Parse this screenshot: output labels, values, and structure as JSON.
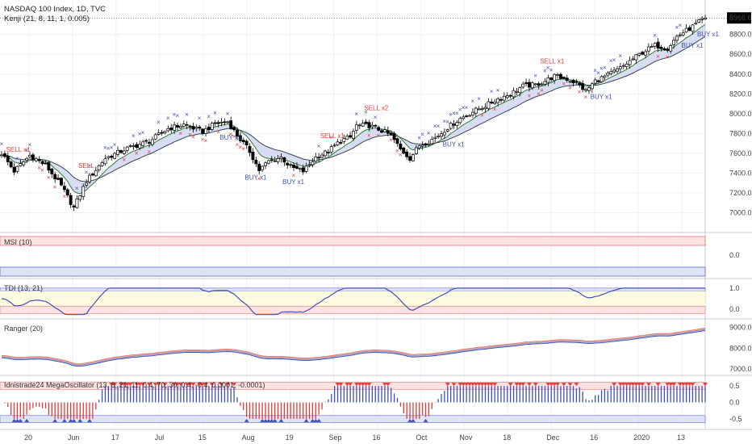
{
  "header": {
    "title": "NASDAQ 100 Index, 1D, TVC",
    "subtitle": "Kenji (21, 8, 11, 1, 0.005)",
    "last_price": "8966.6"
  },
  "colors": {
    "up": "#ffffff",
    "down": "#000000",
    "buy": "#3f51b5",
    "sell": "#e53935",
    "band_fill": "#c9cff0",
    "price_tag": "#000000"
  },
  "x_axis_labels": [
    "20",
    "Jun",
    "17",
    "Jul",
    "15",
    "Aug",
    "19",
    "Sep",
    "16",
    "Oct",
    "Nov",
    "18",
    "Dec",
    "16",
    "2020",
    "13"
  ],
  "panes": [
    {
      "id": "price",
      "label": "",
      "ticks": [
        "8800.0",
        "8600.0",
        "8400.0",
        "8200.0",
        "8000.0",
        "7800.0",
        "7600.0",
        "7400.0",
        "7200.0",
        "7000.0"
      ]
    },
    {
      "id": "msi",
      "label": "MSI (10)",
      "ticks": [
        "0.0"
      ]
    },
    {
      "id": "tdi",
      "label": "TDI (13, 21)",
      "ticks": [
        "1.0",
        "0.0"
      ]
    },
    {
      "id": "ranger",
      "label": "Ranger (20)",
      "ticks": [
        "9000.0",
        "8000.0",
        "7000.0"
      ]
    },
    {
      "id": "mega",
      "label": "Idnistrade24 MegaOscillator (13, 8, 21, 11, 0.4, 70, 30, 0.4, -0.4, 0.0001, -0.0001)",
      "ticks": [
        "0.5",
        "0.0",
        "-0.5"
      ]
    }
  ],
  "signals": [
    {
      "text": "SELL x1",
      "type": "sell"
    },
    {
      "text": "SELL",
      "type": "sell"
    },
    {
      "text": "BUY x1",
      "type": "buy"
    },
    {
      "text": "BUY x1",
      "type": "buy"
    },
    {
      "text": "BUY x1",
      "type": "buy"
    },
    {
      "text": "SELL x1",
      "type": "sell"
    },
    {
      "text": "SELL x2",
      "type": "sell"
    },
    {
      "text": "BUY x1",
      "type": "buy"
    },
    {
      "text": "SELL x1",
      "type": "sell"
    },
    {
      "text": "BUY x1",
      "type": "buy"
    },
    {
      "text": "BUY x1",
      "type": "buy"
    },
    {
      "text": "BUY x1",
      "type": "buy"
    }
  ],
  "chart_data": {
    "type": "candlestick",
    "symbol": "NASDAQ 100 Index",
    "interval": "1D",
    "ylim": [
      6850,
      9050
    ],
    "close_anchors": [
      [
        0,
        7600
      ],
      [
        4,
        7420
      ],
      [
        9,
        7580
      ],
      [
        14,
        7480
      ],
      [
        19,
        7270
      ],
      [
        23,
        7050
      ],
      [
        27,
        7320
      ],
      [
        33,
        7550
      ],
      [
        40,
        7650
      ],
      [
        47,
        7720
      ],
      [
        53,
        7850
      ],
      [
        58,
        7890
      ],
      [
        64,
        7820
      ],
      [
        68,
        7900
      ],
      [
        72,
        7920
      ],
      [
        75,
        7780
      ],
      [
        79,
        7620
      ],
      [
        82,
        7430
      ],
      [
        85,
        7520
      ],
      [
        89,
        7560
      ],
      [
        92,
        7460
      ],
      [
        96,
        7420
      ],
      [
        100,
        7560
      ],
      [
        104,
        7620
      ],
      [
        108,
        7730
      ],
      [
        111,
        7760
      ],
      [
        113,
        7880
      ],
      [
        117,
        7880
      ],
      [
        121,
        7830
      ],
      [
        124,
        7780
      ],
      [
        127,
        7640
      ],
      [
        130,
        7550
      ],
      [
        133,
        7680
      ],
      [
        136,
        7720
      ],
      [
        139,
        7780
      ],
      [
        142,
        7860
      ],
      [
        146,
        7950
      ],
      [
        150,
        8020
      ],
      [
        154,
        8080
      ],
      [
        158,
        8150
      ],
      [
        162,
        8200
      ],
      [
        166,
        8280
      ],
      [
        170,
        8290
      ],
      [
        173,
        8330
      ],
      [
        176,
        8380
      ],
      [
        180,
        8350
      ],
      [
        183,
        8310
      ],
      [
        186,
        8230
      ],
      [
        189,
        8330
      ],
      [
        193,
        8390
      ],
      [
        197,
        8460
      ],
      [
        200,
        8530
      ],
      [
        204,
        8620
      ],
      [
        208,
        8690
      ],
      [
        212,
        8660
      ],
      [
        215,
        8780
      ],
      [
        218,
        8840
      ],
      [
        221,
        8900
      ],
      [
        224,
        8967
      ]
    ],
    "ranger_ylim": [
      6850,
      9250
    ],
    "ranger_ticks": [
      9000,
      8000,
      7000
    ],
    "msi": {
      "value": 0.0
    },
    "tdi": {
      "ylim": [
        -0.3,
        1.3
      ],
      "ticks": [
        1.0,
        0.0
      ]
    },
    "mega": {
      "ylim": [
        -0.75,
        0.75
      ],
      "ticks": [
        0.5,
        0.0,
        -0.5
      ]
    }
  }
}
